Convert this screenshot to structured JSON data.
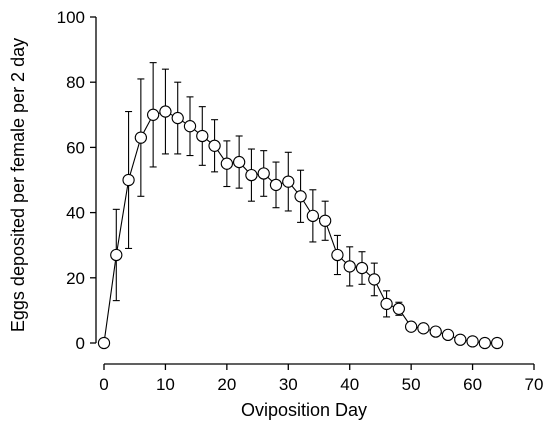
{
  "chart_data": {
    "type": "line",
    "title": "",
    "xlabel": "Oviposition Day",
    "ylabel": "Eggs deposited per female per 2 day",
    "xlim": [
      0,
      70
    ],
    "ylim": [
      0,
      100
    ],
    "xticks": [
      0,
      10,
      20,
      30,
      40,
      50,
      60,
      70
    ],
    "yticks": [
      0,
      20,
      40,
      60,
      80,
      100
    ],
    "grid": false,
    "legend": "none",
    "marker": "open-circle",
    "series": [
      {
        "x": [
          0,
          2,
          4,
          6,
          8,
          10,
          12,
          14,
          16,
          18,
          20,
          22,
          24,
          26,
          28,
          30,
          32,
          34,
          36,
          38,
          40,
          42,
          44,
          46,
          48,
          50,
          52,
          54,
          56,
          58,
          60,
          62,
          64
        ],
        "y": [
          0,
          27,
          50,
          63,
          70,
          71,
          69,
          66.5,
          63.5,
          60.5,
          55,
          55.5,
          51.5,
          52,
          48.5,
          49.5,
          45,
          39,
          37.5,
          27,
          23.5,
          23,
          19.5,
          12,
          10.5,
          5,
          4.5,
          3.5,
          2.5,
          1,
          0.5,
          0,
          0
        ],
        "err": [
          null,
          14,
          21,
          18,
          16,
          13,
          11,
          9,
          9,
          8,
          7,
          8,
          8,
          7,
          7,
          9,
          8,
          8,
          6,
          6,
          6,
          5,
          5,
          4,
          2,
          null,
          null,
          null,
          null,
          null,
          null,
          null,
          null
        ]
      }
    ]
  }
}
